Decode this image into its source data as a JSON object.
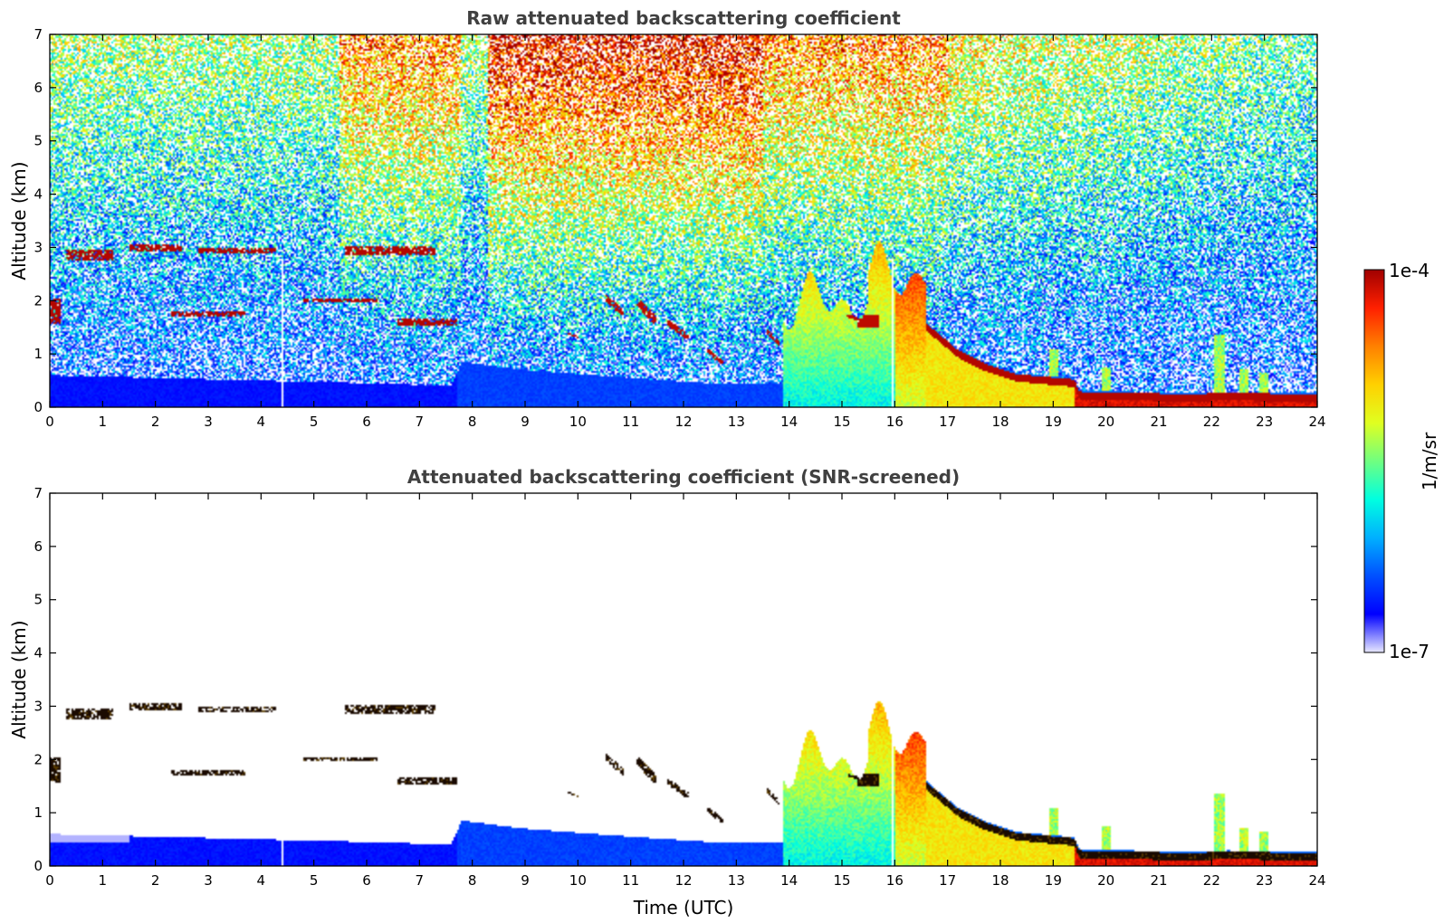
{
  "colors": {
    "background": "#ffffff",
    "title": "#404040",
    "cloud_black": "#1a0a00"
  },
  "colormap": [
    "#ffffff",
    "#0000ff",
    "#0050ff",
    "#00b0ff",
    "#00ffe0",
    "#70ff80",
    "#e0ff20",
    "#ffd000",
    "#ff8000",
    "#ff2000",
    "#a00000"
  ],
  "colorbar": {
    "label": "1/m/sr",
    "top_label": "1e-4",
    "bottom_label": "1e-7",
    "min": 1e-07,
    "max": 0.0001,
    "scale": "log"
  },
  "chart_data": [
    {
      "type": "heatmap",
      "title": "Raw attenuated backscattering coefficient",
      "xlabel": "",
      "ylabel": "Altitude (km)",
      "xlim": [
        0,
        24
      ],
      "ylim": [
        0,
        7
      ],
      "x_ticks": [
        0,
        1,
        2,
        3,
        4,
        5,
        6,
        7,
        8,
        9,
        10,
        11,
        12,
        13,
        14,
        15,
        16,
        17,
        18,
        19,
        20,
        21,
        22,
        23,
        24
      ],
      "y_ticks": [
        0,
        1,
        2,
        3,
        4,
        5,
        6,
        7
      ],
      "x_tick_labels": [
        "0",
        "1",
        "2",
        "3",
        "4",
        "5",
        "6",
        "7",
        "8",
        "9",
        "10",
        "11",
        "12",
        "13",
        "14",
        "15",
        "16",
        "17",
        "18",
        "19",
        "20",
        "21",
        "22",
        "23",
        "24"
      ],
      "y_tick_labels": [
        "0",
        "1",
        "2",
        "3",
        "4",
        "5",
        "6",
        "7"
      ],
      "screened": false
    },
    {
      "type": "heatmap",
      "title": "Attenuated backscattering coefficient (SNR-screened)",
      "xlabel": "Time (UTC)",
      "ylabel": "Altitude (km)",
      "xlim": [
        0,
        24
      ],
      "ylim": [
        0,
        7
      ],
      "x_ticks": [
        0,
        1,
        2,
        3,
        4,
        5,
        6,
        7,
        8,
        9,
        10,
        11,
        12,
        13,
        14,
        15,
        16,
        17,
        18,
        19,
        20,
        21,
        22,
        23,
        24
      ],
      "y_ticks": [
        0,
        1,
        2,
        3,
        4,
        5,
        6,
        7
      ],
      "x_tick_labels": [
        "0",
        "1",
        "2",
        "3",
        "4",
        "5",
        "6",
        "7",
        "8",
        "9",
        "10",
        "11",
        "12",
        "13",
        "14",
        "15",
        "16",
        "17",
        "18",
        "19",
        "20",
        "21",
        "22",
        "23",
        "24"
      ],
      "y_tick_labels": [
        "0",
        "1",
        "2",
        "3",
        "4",
        "5",
        "6",
        "7"
      ],
      "screened": true
    }
  ],
  "features": {
    "cloud_layers": [
      {
        "x0": 0.3,
        "x1": 1.2,
        "alt": 2.85,
        "thick": 0.18
      },
      {
        "x0": 1.5,
        "x1": 2.5,
        "alt": 3.0,
        "thick": 0.15
      },
      {
        "x0": 2.8,
        "x1": 4.3,
        "alt": 2.93,
        "thick": 0.1
      },
      {
        "x0": 5.6,
        "x1": 7.3,
        "alt": 2.93,
        "thick": 0.16
      },
      {
        "x0": 2.3,
        "x1": 3.7,
        "alt": 1.75,
        "thick": 0.12
      },
      {
        "x0": 6.6,
        "x1": 7.7,
        "alt": 1.6,
        "thick": 0.14
      },
      {
        "x0": 4.8,
        "x1": 6.2,
        "alt": 2.0,
        "thick": 0.08
      },
      {
        "x0": 0.0,
        "x1": 0.2,
        "alt": 1.8,
        "thick": 0.5
      }
    ],
    "cloud_patches": [
      {
        "x": 10.7,
        "alt": 1.9,
        "w": 0.35,
        "h": 0.4
      },
      {
        "x": 11.3,
        "alt": 1.8,
        "w": 0.4,
        "h": 0.5
      },
      {
        "x": 11.9,
        "alt": 1.45,
        "w": 0.4,
        "h": 0.35
      },
      {
        "x": 12.6,
        "alt": 0.95,
        "w": 0.3,
        "h": 0.3
      },
      {
        "x": 13.7,
        "alt": 1.3,
        "w": 0.25,
        "h": 0.3
      },
      {
        "x": 9.9,
        "alt": 1.35,
        "w": 0.2,
        "h": 0.1
      },
      {
        "x": 15.3,
        "alt": 1.65,
        "w": 0.4,
        "h": 0.2
      }
    ],
    "boundary_layer": [
      [
        0,
        0.6
      ],
      [
        2,
        0.55
      ],
      [
        4,
        0.5
      ],
      [
        6,
        0.45
      ],
      [
        7.6,
        0.4
      ],
      [
        7.8,
        0.85
      ],
      [
        9,
        0.7
      ],
      [
        11,
        0.55
      ],
      [
        12.5,
        0.45
      ],
      [
        13.8,
        0.45
      ]
    ],
    "convective_zone": {
      "x0": 13.9,
      "x1": 16.6
    },
    "descending_layer": [
      [
        16.6,
        1.5
      ],
      [
        17.2,
        1.0
      ],
      [
        17.7,
        0.75
      ],
      [
        18.3,
        0.55
      ],
      [
        19.4,
        0.45
      ],
      [
        19.5,
        0.22
      ],
      [
        20.5,
        0.2
      ],
      [
        21.5,
        0.17
      ],
      [
        22.3,
        0.2
      ],
      [
        23.9,
        0.17
      ]
    ],
    "plumes": [
      {
        "x": 19.0,
        "top": 1.1
      },
      {
        "x": 20.0,
        "top": 0.75
      },
      {
        "x": 22.15,
        "top": 1.35
      },
      {
        "x": 22.6,
        "top": 0.7
      },
      {
        "x": 23.0,
        "top": 0.65
      }
    ],
    "data_gaps": [
      4.4,
      15.95
    ]
  }
}
